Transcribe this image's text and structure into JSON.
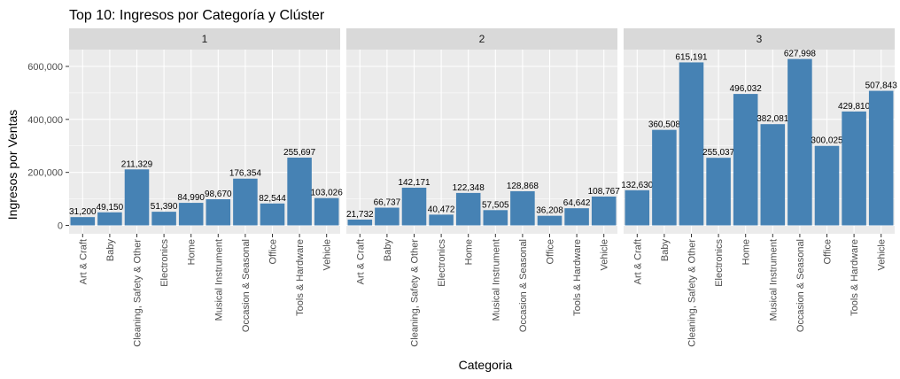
{
  "chart_data": {
    "type": "bar",
    "title": "Top 10: Ingresos por Categoría y Clúster",
    "xlabel": "Categoria",
    "ylabel": "Ingresos por Ventas",
    "ylim": [
      0,
      720000
    ],
    "y_ticks": [
      0,
      200000,
      400000,
      600000
    ],
    "y_tick_labels": [
      "0",
      "200,000",
      "400,000",
      "600,000"
    ],
    "bar_color": "#4682B4",
    "panel_background": "#EBEBEB",
    "strip_background": "#D9D9D9",
    "grid": true,
    "legend": "none",
    "categories": [
      "Art & Craft",
      "Baby",
      "Cleaning, Safety & Other",
      "Electronics",
      "Home",
      "Musical Instrument",
      "Occasion & Seasonal",
      "Office",
      "Tools & Hardware",
      "Vehicle"
    ],
    "series": [
      {
        "name": "1",
        "values": [
          31200,
          49150,
          211329,
          51390,
          84990,
          98670,
          176354,
          82544,
          255697,
          103026
        ],
        "labels": [
          "31,200",
          "49,150",
          "211,329",
          "51,390",
          "84,990",
          "98,670",
          "176,354",
          "82,544",
          "255,697",
          "103,026"
        ]
      },
      {
        "name": "2",
        "values": [
          21732,
          66737,
          142171,
          40472,
          122348,
          57505,
          128868,
          36208,
          64642,
          108767
        ],
        "labels": [
          "21,732",
          "66,737",
          "142,171",
          "40,472",
          "122,348",
          "57,505",
          "128,868",
          "36,208",
          "64,642",
          "108,767"
        ]
      },
      {
        "name": "3",
        "values": [
          132630,
          360508,
          615191,
          255037,
          496032,
          382081,
          627998,
          300025,
          429810,
          507843
        ],
        "labels": [
          "132,630",
          "360,508",
          "615,191",
          "255,037",
          "496,032",
          "382,081",
          "627,998",
          "300,025",
          "429,810",
          "507,843"
        ]
      }
    ]
  }
}
